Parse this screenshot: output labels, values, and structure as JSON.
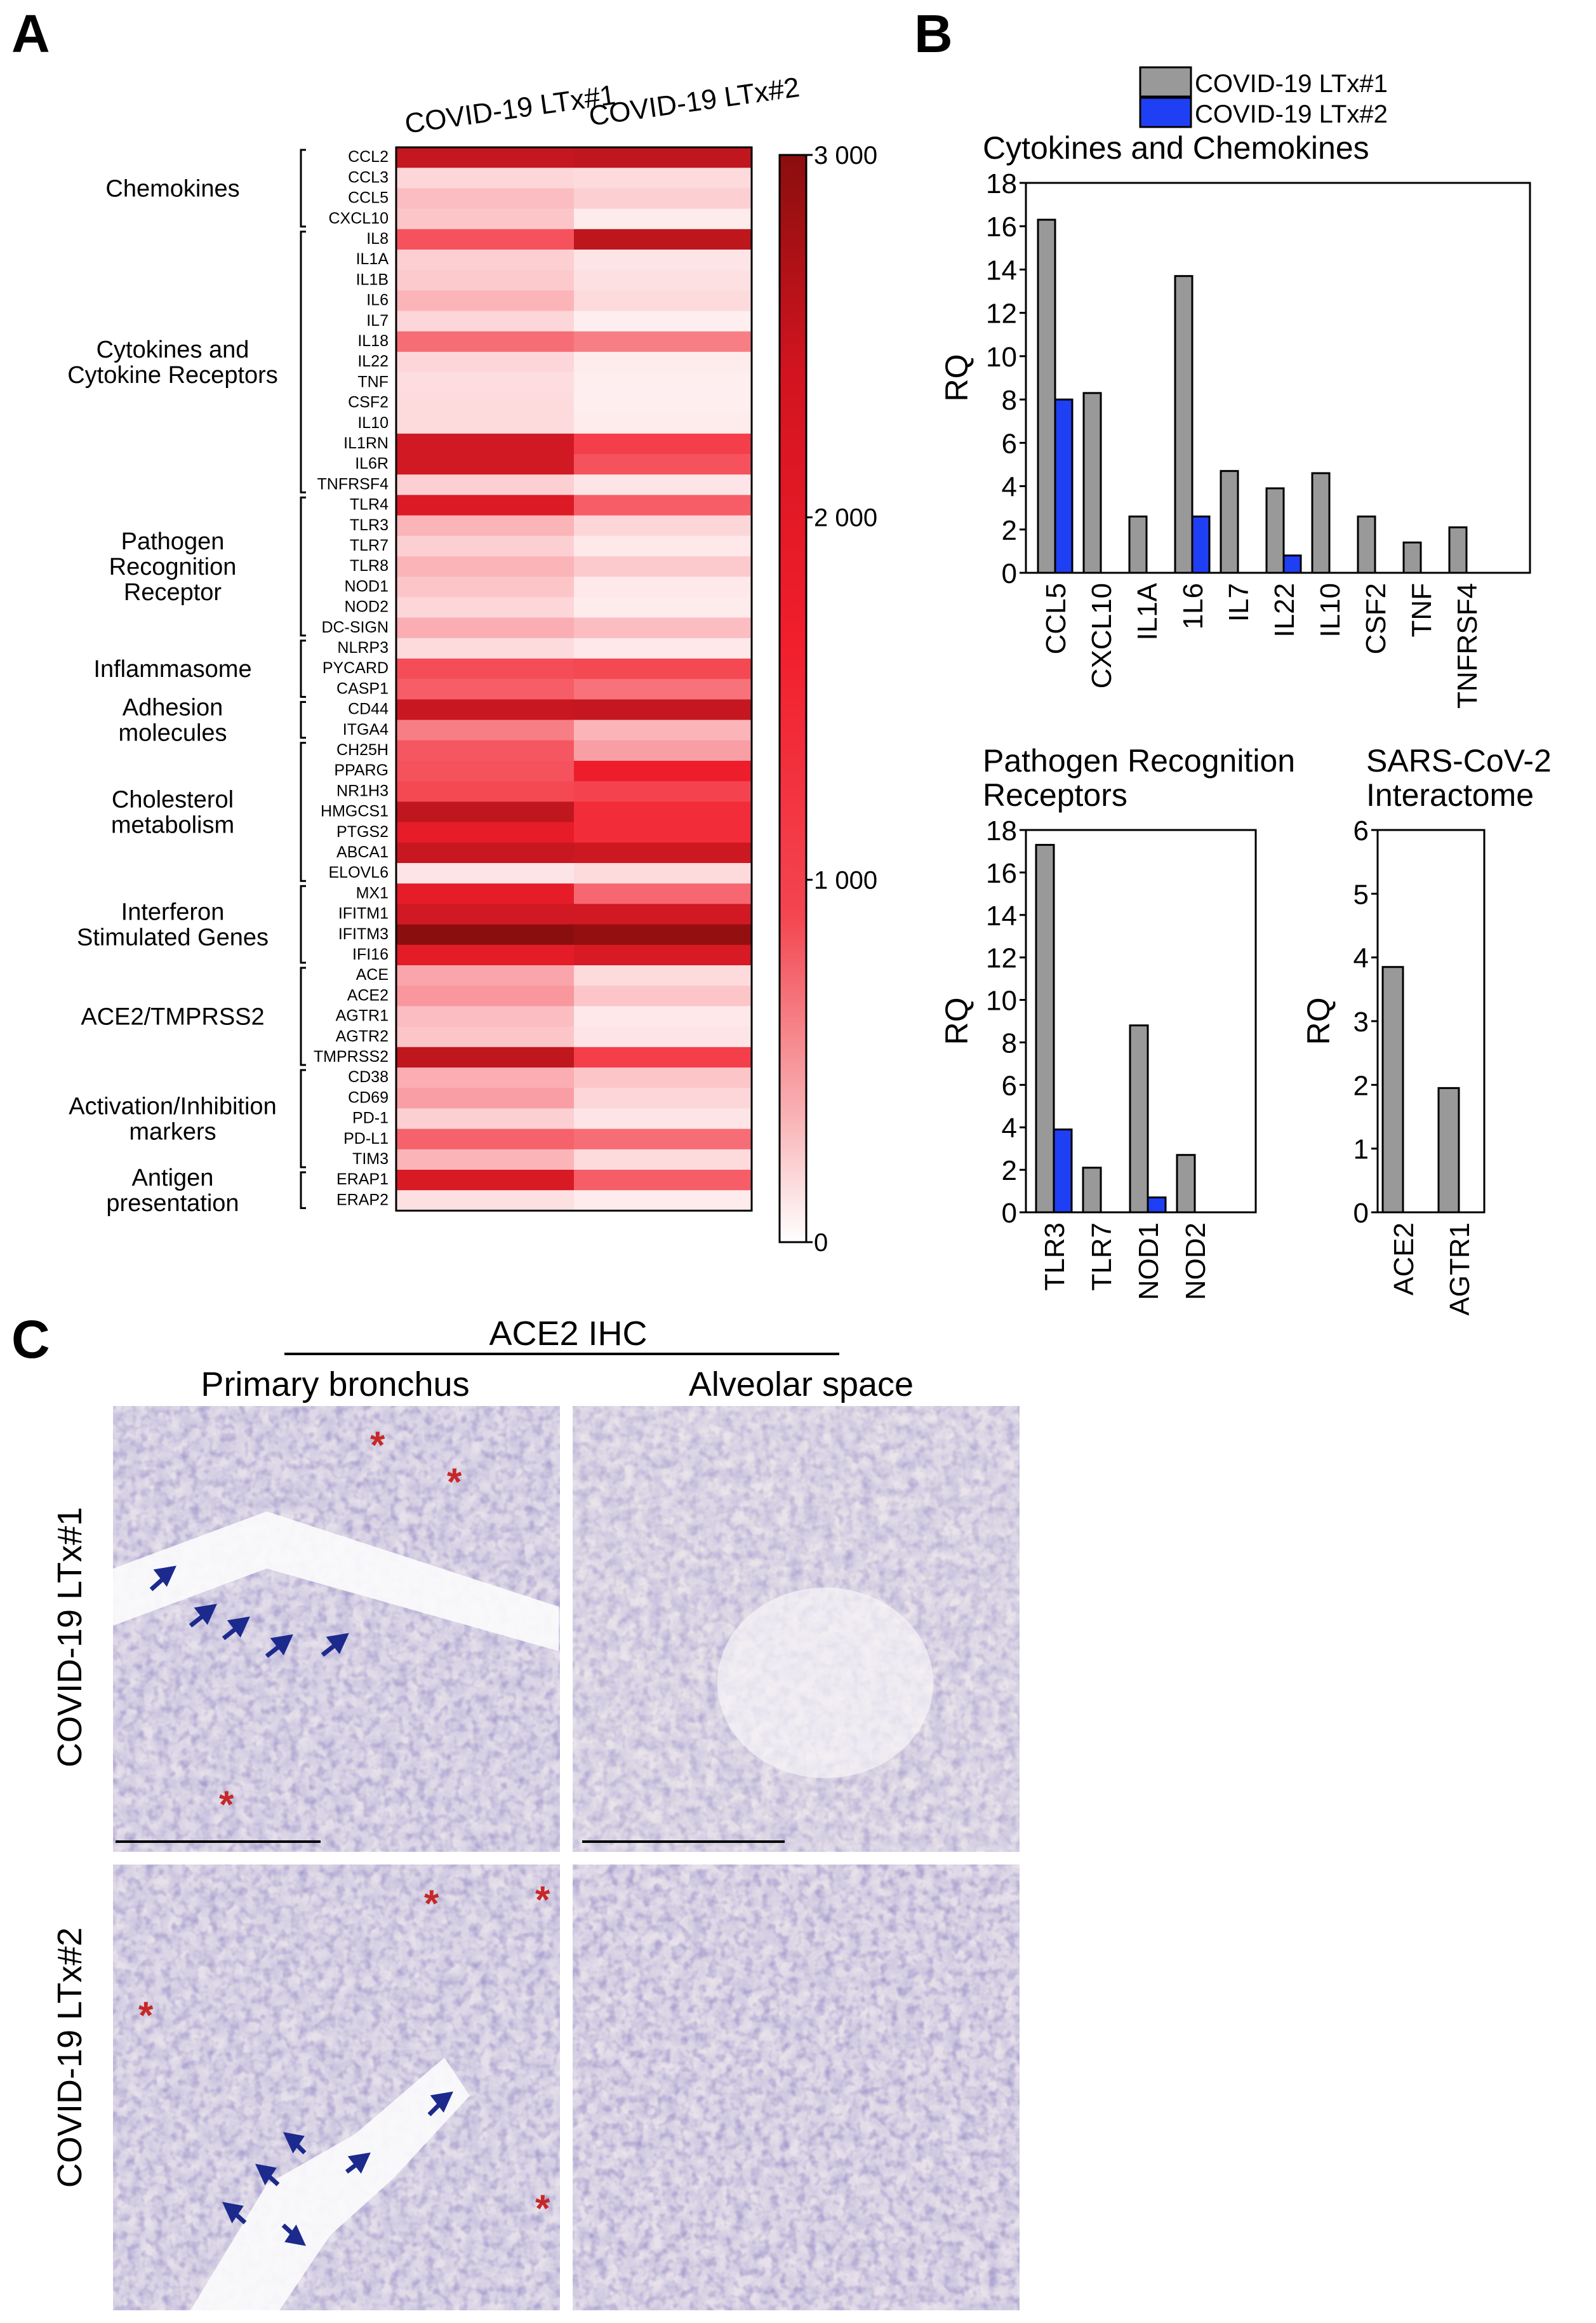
{
  "panels": {
    "a": "A",
    "b": "B",
    "c": "C"
  },
  "colors": {
    "series1": "#999999",
    "series2": "#1f3ff5",
    "heat_low": "#ffffff",
    "heat_mid": "#f21e2c",
    "heat_high": "#8b0e0e",
    "asterisk": "#c62828",
    "arrow": "#1b2a8c"
  },
  "legend": {
    "series1": "COVID-19 LTx#1",
    "series2": "COVID-19 LTx#2"
  },
  "chart_data": [
    {
      "type": "heatmap",
      "columns": [
        "COVID-19 LTx#1",
        "COVID-19 LTx#2"
      ],
      "colorbar": {
        "min": 0,
        "max": 3000,
        "ticks": [
          {
            "v": 0,
            "label": "0"
          },
          {
            "v": 1000,
            "label": "1 000"
          },
          {
            "v": 2000,
            "label": "2 000"
          },
          {
            "v": 3000,
            "label": "3 000"
          }
        ]
      },
      "rows": [
        {
          "gene": "CCL2",
          "values": [
            2250,
            2300
          ]
        },
        {
          "gene": "CCL3",
          "values": [
            120,
            100
          ]
        },
        {
          "gene": "CCL5",
          "values": [
            250,
            150
          ]
        },
        {
          "gene": "CXCL10",
          "values": [
            200,
            40
          ]
        },
        {
          "gene": "IL8",
          "values": [
            1100,
            2350
          ]
        },
        {
          "gene": "IL1A",
          "values": [
            150,
            60
          ]
        },
        {
          "gene": "IL1B",
          "values": [
            180,
            80
          ]
        },
        {
          "gene": "IL6",
          "values": [
            300,
            100
          ]
        },
        {
          "gene": "IL7",
          "values": [
            120,
            30
          ]
        },
        {
          "gene": "IL18",
          "values": [
            850,
            700
          ]
        },
        {
          "gene": "IL22",
          "values": [
            120,
            40
          ]
        },
        {
          "gene": "TNF",
          "values": [
            90,
            30
          ]
        },
        {
          "gene": "CSF2",
          "values": [
            100,
            30
          ]
        },
        {
          "gene": "IL10",
          "values": [
            100,
            40
          ]
        },
        {
          "gene": "IL1RN",
          "values": [
            2100,
            1300
          ]
        },
        {
          "gene": "IL6R",
          "values": [
            2100,
            1100
          ]
        },
        {
          "gene": "TNFRSF4",
          "values": [
            150,
            60
          ]
        },
        {
          "gene": "TLR4",
          "values": [
            1950,
            1000
          ]
        },
        {
          "gene": "TLR3",
          "values": [
            300,
            120
          ]
        },
        {
          "gene": "TLR7",
          "values": [
            150,
            50
          ]
        },
        {
          "gene": "TLR8",
          "values": [
            300,
            180
          ]
        },
        {
          "gene": "NOD1",
          "values": [
            200,
            50
          ]
        },
        {
          "gene": "NOD2",
          "values": [
            120,
            40
          ]
        },
        {
          "gene": "DC-SIGN",
          "values": [
            350,
            250
          ]
        },
        {
          "gene": "NLRP3",
          "values": [
            100,
            50
          ]
        },
        {
          "gene": "PYCARD",
          "values": [
            1150,
            1200
          ]
        },
        {
          "gene": "CASP1",
          "values": [
            1000,
            800
          ]
        },
        {
          "gene": "CD44",
          "values": [
            2200,
            2250
          ]
        },
        {
          "gene": "ITGA4",
          "values": [
            700,
            300
          ]
        },
        {
          "gene": "CH25H",
          "values": [
            1050,
            450
          ]
        },
        {
          "gene": "PPARG",
          "values": [
            1100,
            1700
          ]
        },
        {
          "gene": "NR1H3",
          "values": [
            1200,
            1250
          ]
        },
        {
          "gene": "HMGCS1",
          "values": [
            2300,
            1500
          ]
        },
        {
          "gene": "PTGS2",
          "values": [
            1800,
            1500
          ]
        },
        {
          "gene": "ABCA1",
          "values": [
            2200,
            2150
          ]
        },
        {
          "gene": "ELOVL6",
          "values": [
            60,
            100
          ]
        },
        {
          "gene": "MX1",
          "values": [
            1800,
            900
          ]
        },
        {
          "gene": "IFITM1",
          "values": [
            2100,
            2100
          ]
        },
        {
          "gene": "IFITM3",
          "values": [
            3000,
            2900
          ]
        },
        {
          "gene": "IFI16",
          "values": [
            1850,
            2000
          ]
        },
        {
          "gene": "ACE",
          "values": [
            400,
            100
          ]
        },
        {
          "gene": "ACE2",
          "values": [
            500,
            200
          ]
        },
        {
          "gene": "AGTR1",
          "values": [
            250,
            50
          ]
        },
        {
          "gene": "AGTR2",
          "values": [
            200,
            60
          ]
        },
        {
          "gene": "TMPRSS2",
          "values": [
            2300,
            1300
          ]
        },
        {
          "gene": "CD38",
          "values": [
            350,
            200
          ]
        },
        {
          "gene": "CD69",
          "values": [
            450,
            120
          ]
        },
        {
          "gene": "PD-1",
          "values": [
            150,
            60
          ]
        },
        {
          "gene": "PD-L1",
          "values": [
            950,
            850
          ]
        },
        {
          "gene": "TIM3",
          "values": [
            300,
            100
          ]
        },
        {
          "gene": "ERAP1",
          "values": [
            2000,
            1000
          ]
        },
        {
          "gene": "ERAP2",
          "values": [
            80,
            40
          ]
        }
      ],
      "groups": [
        {
          "label": [
            "Chemokines"
          ],
          "start": 0,
          "end": 3
        },
        {
          "label": [
            "Cytokines and",
            "Cytokine Receptors"
          ],
          "start": 4,
          "end": 16
        },
        {
          "label": [
            "Pathogen",
            "Recognition",
            "Receptor"
          ],
          "start": 17,
          "end": 23
        },
        {
          "label": [
            "Inflammasome"
          ],
          "start": 24,
          "end": 26
        },
        {
          "label": [
            "Adhesion",
            "molecules"
          ],
          "start": 27,
          "end": 28
        },
        {
          "label": [
            "Cholesterol",
            "metabolism"
          ],
          "start": 29,
          "end": 35
        },
        {
          "label": [
            "Interferon",
            "Stimulated Genes"
          ],
          "start": 36,
          "end": 39
        },
        {
          "label": [
            "ACE2/TMPRSS2"
          ],
          "start": 40,
          "end": 44
        },
        {
          "label": [
            "Activation/Inhibition",
            "markers"
          ],
          "start": 45,
          "end": 49
        },
        {
          "label": [
            "Antigen",
            "presentation"
          ],
          "start": 50,
          "end": 51
        }
      ]
    },
    {
      "type": "bar",
      "title": [
        "Cytokines and Chemokines"
      ],
      "ylabel": "RQ",
      "ylim": [
        0,
        18
      ],
      "yticks": [
        0,
        2,
        4,
        6,
        8,
        10,
        12,
        14,
        16,
        18
      ],
      "categories": [
        "CCL5",
        "CXCL10",
        "IL1A",
        "1L6",
        "IL7",
        "IL22",
        "IL10",
        "CSF2",
        "TNF",
        "TNFRSF4"
      ],
      "series": [
        {
          "name": "COVID-19 LTx#1",
          "values": [
            16.3,
            8.3,
            2.6,
            13.7,
            4.7,
            3.9,
            4.6,
            2.6,
            1.4,
            2.1
          ]
        },
        {
          "name": "COVID-19 LTx#2",
          "values": [
            8.0,
            0,
            0,
            2.6,
            0,
            0.8,
            0,
            0,
            0,
            0
          ]
        }
      ]
    },
    {
      "type": "bar",
      "title": [
        "Pathogen Recognition",
        "Receptors"
      ],
      "ylabel": "RQ",
      "ylim": [
        0,
        18
      ],
      "yticks": [
        0,
        2,
        4,
        6,
        8,
        10,
        12,
        14,
        16,
        18
      ],
      "categories": [
        "TLR3",
        "TLR7",
        "NOD1",
        "NOD2"
      ],
      "series": [
        {
          "name": "COVID-19 LTx#1",
          "values": [
            17.3,
            2.1,
            8.8,
            2.7
          ]
        },
        {
          "name": "COVID-19 LTx#2",
          "values": [
            3.9,
            0,
            0.7,
            0
          ]
        }
      ]
    },
    {
      "type": "bar",
      "title": [
        "SARS-CoV-2",
        "Interactome"
      ],
      "ylabel": "RQ",
      "ylim": [
        0,
        6
      ],
      "yticks": [
        0,
        1,
        2,
        3,
        4,
        5,
        6
      ],
      "categories": [
        "ACE2",
        "AGTR1"
      ],
      "series": [
        {
          "name": "COVID-19 LTx#1",
          "values": [
            3.85,
            1.95
          ]
        },
        {
          "name": "COVID-19 LTx#2",
          "values": [
            0,
            0
          ]
        }
      ]
    }
  ],
  "ihc": {
    "header": "ACE2 IHC",
    "col_left": "Primary bronchus",
    "col_right": "Alveolar space",
    "row_top": "COVID-19 LTx#1",
    "row_bottom": "COVID-19 LTx#2",
    "asterisk": "*"
  }
}
